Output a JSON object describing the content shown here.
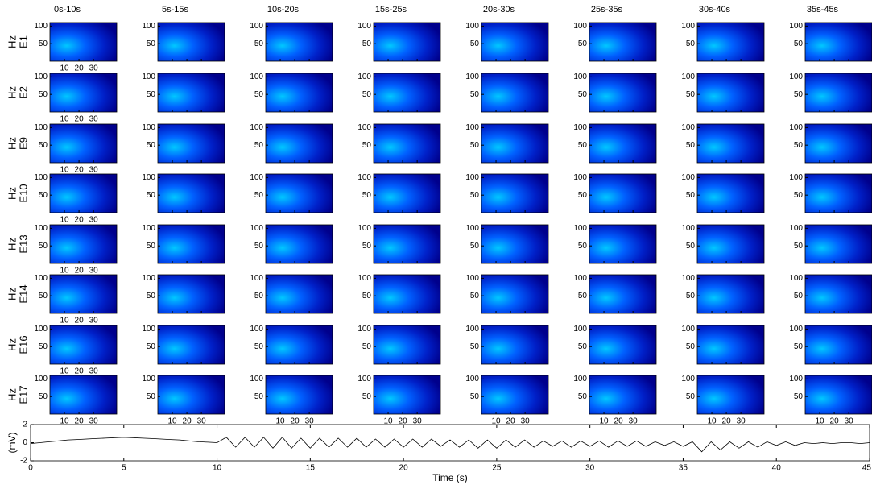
{
  "chart_data": [
    {
      "type": "heatmap-grid",
      "columns": [
        "0s-10s",
        "5s-15s",
        "10s-20s",
        "15s-25s",
        "20s-30s",
        "25s-35s",
        "30s-40s",
        "35s-45s"
      ],
      "rows": [
        "E1",
        "E2",
        "E9",
        "E10",
        "E13",
        "E14",
        "E16",
        "E17"
      ],
      "ylabel": "Hz",
      "xlim": [
        0,
        46
      ],
      "ylim": [
        0,
        110
      ],
      "xticks": [
        10,
        20,
        30
      ],
      "yticks": [
        50,
        100
      ]
    },
    {
      "type": "line",
      "xlabel": "Time (s)",
      "ylabel": "(mV)",
      "xlim": [
        0,
        45
      ],
      "ylim": [
        -2,
        2
      ],
      "xticks": [
        0,
        5,
        10,
        15,
        20,
        25,
        30,
        35,
        40,
        45
      ],
      "yticks": [
        -2,
        0,
        2
      ],
      "color": "#000000",
      "x": [
        0,
        0.5,
        1,
        1.5,
        2,
        2.5,
        3,
        3.5,
        4,
        4.5,
        5,
        5.5,
        6,
        6.5,
        7,
        7.5,
        8,
        8.5,
        9,
        9.5,
        10,
        10.5,
        11,
        11.5,
        12,
        12.5,
        13,
        13.5,
        14,
        14.5,
        15,
        15.5,
        16,
        16.5,
        17,
        17.5,
        18,
        18.5,
        19,
        19.5,
        20,
        20.5,
        21,
        21.5,
        22,
        22.5,
        23,
        23.5,
        24,
        24.5,
        25,
        25.5,
        26,
        26.5,
        27,
        27.5,
        28,
        28.5,
        29,
        29.5,
        30,
        30.5,
        31,
        31.5,
        32,
        32.5,
        33,
        33.5,
        34,
        34.5,
        35,
        35.5,
        36,
        36.5,
        37,
        37.5,
        38,
        38.5,
        39,
        39.5,
        40,
        40.5,
        41,
        41.5,
        42,
        42.5,
        43,
        43.5,
        44,
        44.5,
        45
      ],
      "values": [
        -0.1,
        0,
        0.1,
        0.2,
        0.3,
        0.35,
        0.4,
        0.45,
        0.5,
        0.55,
        0.6,
        0.55,
        0.5,
        0.45,
        0.4,
        0.35,
        0.3,
        0.2,
        0.1,
        0.05,
        0,
        0.6,
        -0.5,
        0.6,
        -0.5,
        0.6,
        -0.6,
        0.6,
        -0.6,
        0.5,
        -0.6,
        0.5,
        -0.5,
        0.5,
        -0.5,
        0.5,
        -0.5,
        0.4,
        -0.5,
        0.4,
        -0.5,
        0.4,
        -0.5,
        0.4,
        -0.4,
        0.3,
        -0.5,
        0.3,
        -0.6,
        0.3,
        -0.6,
        0.3,
        -0.5,
        0.3,
        -0.5,
        0.2,
        -0.4,
        0.2,
        -0.5,
        0.2,
        -0.4,
        0.2,
        -0.5,
        0.2,
        -0.4,
        0.2,
        -0.4,
        0.1,
        -0.3,
        0.1,
        -0.4,
        0.1,
        -1,
        0.1,
        -0.8,
        0.1,
        -0.6,
        0.1,
        -0.5,
        0.1,
        -0.3,
        0.1,
        -0.3,
        0,
        -0.1,
        0,
        -0.1,
        0,
        0,
        -0.1,
        0
      ]
    }
  ]
}
